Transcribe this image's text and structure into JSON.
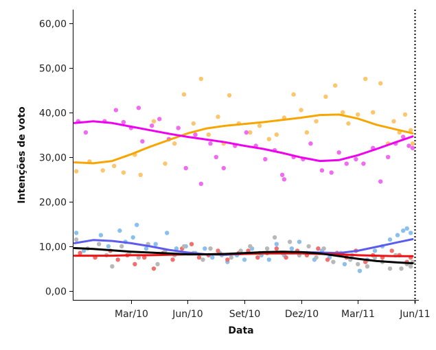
{
  "chart_data": {
    "type": "scatter",
    "xlabel": "Data",
    "ylabel": "Intenções de voto",
    "ylim": [
      -2,
      63
    ],
    "yticks": [
      0,
      10,
      20,
      30,
      40,
      50,
      60
    ],
    "ytick_labels": [
      "0,00",
      "10,00",
      "20,00",
      "30,00",
      "40,00",
      "50,00",
      "60,00"
    ],
    "xlim": [
      -1.05,
      17.3
    ],
    "xticks": [
      2,
      5,
      8,
      11,
      14,
      17
    ],
    "xtick_labels": [
      "Mar/10",
      "Jun/10",
      "Set/10",
      "Dez/10",
      "Mar/11",
      "Jun/11"
    ],
    "x_unit": "months since Jan/10",
    "reference_line_x": 17,
    "series": [
      {
        "color": "#f7a500",
        "point_color": "#fcc66e",
        "trend": [
          [
            -1,
            28.8
          ],
          [
            0,
            28.6
          ],
          [
            1,
            29.1
          ],
          [
            2,
            30.6
          ],
          [
            3,
            32.3
          ],
          [
            4,
            33.8
          ],
          [
            5,
            35.3
          ],
          [
            6,
            36.4
          ],
          [
            7,
            37.0
          ],
          [
            8,
            37.4
          ],
          [
            9,
            37.8
          ],
          [
            10,
            38.3
          ],
          [
            11,
            38.8
          ],
          [
            12,
            39.4
          ],
          [
            13,
            39.5
          ],
          [
            14,
            38.6
          ],
          [
            15,
            37.2
          ],
          [
            16,
            36.2
          ],
          [
            16.9,
            35.3
          ]
        ],
        "points": [
          [
            -0.9,
            26.8
          ],
          [
            -0.2,
            29.0
          ],
          [
            0.5,
            27.0
          ],
          [
            1.1,
            28.0
          ],
          [
            1.6,
            26.5
          ],
          [
            2.2,
            30.5
          ],
          [
            2.5,
            26.0
          ],
          [
            3.2,
            38.0
          ],
          [
            3.8,
            28.5
          ],
          [
            4.3,
            33.0
          ],
          [
            4.8,
            44.0
          ],
          [
            5.3,
            37.5
          ],
          [
            5.7,
            47.5
          ],
          [
            6.1,
            35.0
          ],
          [
            6.6,
            39.0
          ],
          [
            6.9,
            33.0
          ],
          [
            7.2,
            43.8
          ],
          [
            7.7,
            37.5
          ],
          [
            8.3,
            35.5
          ],
          [
            8.8,
            37.0
          ],
          [
            9.3,
            34.0
          ],
          [
            9.7,
            35.0
          ],
          [
            10.1,
            38.8
          ],
          [
            10.6,
            44.0
          ],
          [
            11.0,
            40.5
          ],
          [
            11.3,
            35.5
          ],
          [
            11.8,
            38.0
          ],
          [
            12.3,
            43.5
          ],
          [
            12.8,
            46.0
          ],
          [
            13.2,
            40.0
          ],
          [
            13.5,
            37.5
          ],
          [
            14.0,
            39.5
          ],
          [
            14.4,
            47.5
          ],
          [
            14.8,
            40.0
          ],
          [
            15.2,
            46.5
          ],
          [
            15.6,
            33.0
          ],
          [
            15.9,
            38.0
          ],
          [
            16.2,
            35.5
          ],
          [
            16.5,
            39.5
          ],
          [
            16.8,
            36.0
          ],
          [
            16.9,
            33.0
          ]
        ]
      },
      {
        "color": "#ee00ee",
        "point_color": "#f06bf0",
        "trend": [
          [
            -1,
            37.6
          ],
          [
            0,
            38.0
          ],
          [
            1,
            37.6
          ],
          [
            2,
            36.8
          ],
          [
            3,
            36.0
          ],
          [
            4,
            35.2
          ],
          [
            5,
            34.5
          ],
          [
            6,
            33.9
          ],
          [
            7,
            33.3
          ],
          [
            8,
            32.5
          ],
          [
            9,
            31.8
          ],
          [
            10,
            30.9
          ],
          [
            11,
            29.9
          ],
          [
            12,
            29.1
          ],
          [
            13,
            29.3
          ],
          [
            14,
            30.4
          ],
          [
            15,
            31.8
          ],
          [
            16,
            33.3
          ],
          [
            16.9,
            34.6
          ]
        ],
        "points": [
          [
            -0.8,
            38.0
          ],
          [
            -0.4,
            35.5
          ],
          [
            0.6,
            38.0
          ],
          [
            1.2,
            40.5
          ],
          [
            1.6,
            37.8
          ],
          [
            2.0,
            36.5
          ],
          [
            2.4,
            41.0
          ],
          [
            2.6,
            33.5
          ],
          [
            3.1,
            37.0
          ],
          [
            3.5,
            38.5
          ],
          [
            4.0,
            34.0
          ],
          [
            4.5,
            36.5
          ],
          [
            4.9,
            27.5
          ],
          [
            5.4,
            35.0
          ],
          [
            5.7,
            24.0
          ],
          [
            6.2,
            33.0
          ],
          [
            6.5,
            30.0
          ],
          [
            6.9,
            27.5
          ],
          [
            7.5,
            32.5
          ],
          [
            8.1,
            35.5
          ],
          [
            8.6,
            32.5
          ],
          [
            9.1,
            29.5
          ],
          [
            9.6,
            31.5
          ],
          [
            10.0,
            26.0
          ],
          [
            10.1,
            25.0
          ],
          [
            10.6,
            30.0
          ],
          [
            11.1,
            29.5
          ],
          [
            11.5,
            33.0
          ],
          [
            12.1,
            27.0
          ],
          [
            12.6,
            26.5
          ],
          [
            13.0,
            31.0
          ],
          [
            13.4,
            28.5
          ],
          [
            13.9,
            29.5
          ],
          [
            14.3,
            28.5
          ],
          [
            14.8,
            32.0
          ],
          [
            15.2,
            24.5
          ],
          [
            15.6,
            30.0
          ],
          [
            16.0,
            33.0
          ],
          [
            16.4,
            34.5
          ],
          [
            16.7,
            32.5
          ],
          [
            16.9,
            32.0
          ]
        ]
      },
      {
        "color": "#5b5bee",
        "point_color": "#89c0ee",
        "trend": [
          [
            -1,
            10.7
          ],
          [
            0,
            11.4
          ],
          [
            1,
            11.2
          ],
          [
            2,
            10.7
          ],
          [
            3,
            10.0
          ],
          [
            4,
            9.2
          ],
          [
            5,
            8.6
          ],
          [
            6,
            8.2
          ],
          [
            7,
            8.1
          ],
          [
            8,
            8.3
          ],
          [
            9,
            8.5
          ],
          [
            10,
            8.6
          ],
          [
            11,
            8.7
          ],
          [
            12,
            8.6
          ],
          [
            13,
            8.5
          ],
          [
            14,
            9.0
          ],
          [
            15,
            9.9
          ],
          [
            16,
            10.8
          ],
          [
            16.9,
            11.6
          ]
        ],
        "points": [
          [
            -0.9,
            13.0
          ],
          [
            -0.5,
            9.0
          ],
          [
            0.4,
            12.5
          ],
          [
            0.8,
            10.0
          ],
          [
            1.4,
            13.5
          ],
          [
            1.7,
            11.0
          ],
          [
            2.1,
            12.0
          ],
          [
            2.3,
            14.8
          ],
          [
            2.8,
            9.5
          ],
          [
            3.3,
            10.5
          ],
          [
            3.9,
            13.0
          ],
          [
            4.4,
            9.5
          ],
          [
            4.9,
            10.0
          ],
          [
            5.4,
            8.5
          ],
          [
            5.9,
            9.5
          ],
          [
            6.3,
            7.5
          ],
          [
            6.7,
            8.5
          ],
          [
            7.1,
            6.5
          ],
          [
            7.6,
            8.0
          ],
          [
            8.0,
            7.0
          ],
          [
            8.4,
            9.5
          ],
          [
            8.9,
            8.0
          ],
          [
            9.3,
            7.0
          ],
          [
            9.7,
            10.5
          ],
          [
            10.1,
            8.0
          ],
          [
            10.5,
            9.5
          ],
          [
            10.9,
            11.0
          ],
          [
            11.3,
            8.5
          ],
          [
            11.7,
            7.0
          ],
          [
            12.1,
            9.0
          ],
          [
            12.5,
            7.5
          ],
          [
            12.9,
            8.5
          ],
          [
            13.3,
            6.0
          ],
          [
            13.7,
            8.0
          ],
          [
            14.1,
            4.5
          ],
          [
            14.5,
            7.0
          ],
          [
            14.9,
            9.0
          ],
          [
            15.3,
            10.0
          ],
          [
            15.7,
            11.5
          ],
          [
            16.1,
            12.5
          ],
          [
            16.4,
            13.5
          ],
          [
            16.6,
            14.0
          ],
          [
            16.8,
            13.0
          ]
        ]
      },
      {
        "color": "#ee1111",
        "point_color": "#f07070",
        "trend": [
          [
            -1,
            7.9
          ],
          [
            0,
            7.9
          ],
          [
            1,
            7.9
          ],
          [
            2,
            8.0
          ],
          [
            3,
            8.0
          ],
          [
            4,
            8.1
          ],
          [
            5,
            8.2
          ],
          [
            6,
            8.2
          ],
          [
            7,
            8.3
          ],
          [
            8,
            8.3
          ],
          [
            9,
            8.4
          ],
          [
            10,
            8.4
          ],
          [
            11,
            8.4
          ],
          [
            12,
            8.3
          ],
          [
            13,
            8.2
          ],
          [
            14,
            8.0
          ],
          [
            15,
            7.9
          ],
          [
            16,
            7.8
          ],
          [
            16.9,
            7.8
          ]
        ],
        "points": [
          [
            -0.7,
            8.5
          ],
          [
            0.1,
            7.5
          ],
          [
            0.9,
            9.0
          ],
          [
            1.3,
            7.0
          ],
          [
            1.8,
            8.0
          ],
          [
            2.2,
            6.0
          ],
          [
            2.7,
            7.5
          ],
          [
            3.2,
            5.0
          ],
          [
            3.7,
            8.5
          ],
          [
            4.2,
            7.0
          ],
          [
            4.7,
            9.5
          ],
          [
            5.2,
            10.5
          ],
          [
            5.6,
            7.5
          ],
          [
            6.1,
            8.0
          ],
          [
            6.6,
            9.0
          ],
          [
            7.1,
            7.0
          ],
          [
            7.7,
            8.5
          ],
          [
            8.2,
            9.0
          ],
          [
            8.7,
            7.5
          ],
          [
            9.2,
            8.5
          ],
          [
            9.7,
            9.5
          ],
          [
            10.2,
            7.5
          ],
          [
            10.8,
            9.0
          ],
          [
            11.3,
            8.0
          ],
          [
            11.9,
            9.5
          ],
          [
            12.4,
            7.0
          ],
          [
            12.9,
            8.5
          ],
          [
            13.4,
            7.5
          ],
          [
            13.9,
            9.0
          ],
          [
            14.4,
            6.5
          ],
          [
            14.8,
            8.0
          ],
          [
            15.3,
            7.5
          ],
          [
            15.8,
            9.0
          ],
          [
            16.2,
            8.0
          ],
          [
            16.6,
            6.5
          ],
          [
            16.8,
            7.5
          ]
        ]
      },
      {
        "color": "#000000",
        "point_color": "#b8b8b8",
        "trend": [
          [
            -1,
            9.6
          ],
          [
            0,
            9.4
          ],
          [
            1,
            9.1
          ],
          [
            2,
            8.8
          ],
          [
            3,
            8.6
          ],
          [
            4,
            8.4
          ],
          [
            5,
            8.2
          ],
          [
            6,
            8.2
          ],
          [
            7,
            8.3
          ],
          [
            8,
            8.5
          ],
          [
            9,
            8.7
          ],
          [
            10,
            8.8
          ],
          [
            11,
            8.7
          ],
          [
            12,
            8.4
          ],
          [
            13,
            7.8
          ],
          [
            14,
            7.2
          ],
          [
            15,
            6.7
          ],
          [
            16,
            6.4
          ],
          [
            16.9,
            6.2
          ]
        ],
        "points": [
          [
            -0.9,
            11.5
          ],
          [
            -0.3,
            9.5
          ],
          [
            0.3,
            10.5
          ],
          [
            0.7,
            8.0
          ],
          [
            1.0,
            5.5
          ],
          [
            1.5,
            10.0
          ],
          [
            1.9,
            8.5
          ],
          [
            2.4,
            7.5
          ],
          [
            2.9,
            10.5
          ],
          [
            3.4,
            6.0
          ],
          [
            3.8,
            9.0
          ],
          [
            4.3,
            8.0
          ],
          [
            4.8,
            10.0
          ],
          [
            5.3,
            8.5
          ],
          [
            5.8,
            7.0
          ],
          [
            6.2,
            9.5
          ],
          [
            6.8,
            8.0
          ],
          [
            7.3,
            7.5
          ],
          [
            7.8,
            9.0
          ],
          [
            8.3,
            10.0
          ],
          [
            8.8,
            8.5
          ],
          [
            9.2,
            9.5
          ],
          [
            9.6,
            12.0
          ],
          [
            10.0,
            8.5
          ],
          [
            10.4,
            11.0
          ],
          [
            10.9,
            8.0
          ],
          [
            11.4,
            10.0
          ],
          [
            11.8,
            7.5
          ],
          [
            12.2,
            9.5
          ],
          [
            12.7,
            6.5
          ],
          [
            13.1,
            8.5
          ],
          [
            13.6,
            7.0
          ],
          [
            14.0,
            6.0
          ],
          [
            14.5,
            5.5
          ],
          [
            14.9,
            7.5
          ],
          [
            15.3,
            6.5
          ],
          [
            15.7,
            5.0
          ],
          [
            16.0,
            8.0
          ],
          [
            16.3,
            5.0
          ],
          [
            16.6,
            6.0
          ],
          [
            16.8,
            5.5
          ],
          [
            16.9,
            6.5
          ]
        ]
      }
    ]
  }
}
